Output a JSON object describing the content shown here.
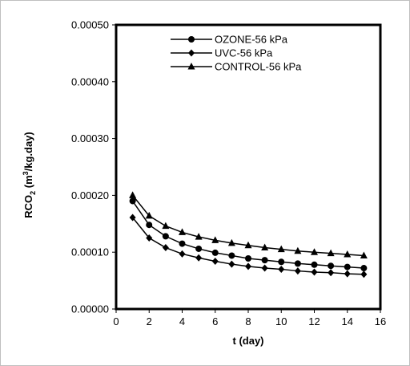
{
  "chart_data": {
    "type": "line",
    "title": "",
    "xlabel": "t (day)",
    "ylabel_main": "RCO",
    "ylabel_sub": "2",
    "ylabel_unit_pre": " (m",
    "ylabel_unit_sup": "3",
    "ylabel_unit_post": "/kg.day)",
    "xlim": [
      0,
      16
    ],
    "ylim": [
      0,
      0.0005
    ],
    "xticks": [
      0,
      2,
      4,
      6,
      8,
      10,
      12,
      14,
      16
    ],
    "xtick_labels": [
      "0",
      "2",
      "4",
      "6",
      "8",
      "10",
      "12",
      "14",
      "16"
    ],
    "yticks": [
      0,
      0.0001,
      0.0002,
      0.0003,
      0.0004,
      0.0005
    ],
    "ytick_labels": [
      "0.00000",
      "0.00010",
      "0.00020",
      "0.00030",
      "0.00040",
      "0.00050"
    ],
    "grid": false,
    "legend_position": "top-right",
    "x": [
      1,
      2,
      3,
      4,
      5,
      6,
      7,
      8,
      9,
      10,
      11,
      12,
      13,
      14,
      15
    ],
    "series": [
      {
        "name": "OZONE-56 kPa",
        "marker": "circle",
        "values": [
          0.00019,
          0.000148,
          0.000128,
          0.000115,
          0.000106,
          9.9e-05,
          9.4e-05,
          8.9e-05,
          8.6e-05,
          8.3e-05,
          8e-05,
          7.8e-05,
          7.6e-05,
          7.4e-05,
          7.2e-05
        ]
      },
      {
        "name": "UVC-56 kPa",
        "marker": "diamond",
        "values": [
          0.000161,
          0.000125,
          0.000108,
          9.7e-05,
          9e-05,
          8.4e-05,
          7.9e-05,
          7.5e-05,
          7.2e-05,
          7e-05,
          6.7e-05,
          6.5e-05,
          6.4e-05,
          6.2e-05,
          6.1e-05
        ]
      },
      {
        "name": "CONTROL-56 kPa",
        "marker": "triangle",
        "values": [
          0.0002,
          0.000164,
          0.000146,
          0.000135,
          0.000127,
          0.000121,
          0.000116,
          0.000112,
          0.000108,
          0.000105,
          0.000102,
          0.0001,
          9.8e-05,
          9.6e-05,
          9.4e-05
        ]
      }
    ],
    "colors": {
      "line": "#000000",
      "frame": "#000000",
      "background": "#ffffff",
      "border": "#bfbfbf"
    }
  }
}
